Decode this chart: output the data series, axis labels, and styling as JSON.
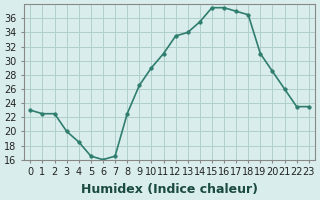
{
  "x": [
    0,
    1,
    2,
    3,
    4,
    5,
    6,
    7,
    8,
    9,
    10,
    11,
    12,
    13,
    14,
    15,
    16,
    17,
    18,
    19,
    20,
    21,
    22,
    23
  ],
  "y": [
    23,
    22.5,
    22.5,
    20,
    18.5,
    16.5,
    16,
    16.5,
    22.5,
    26.5,
    29,
    31,
    33.5,
    34,
    35.5,
    37.5,
    37.5,
    37,
    36.5,
    31,
    28.5,
    26,
    23.5,
    23.5
  ],
  "xlabel": "Humidex (Indice chaleur)",
  "ylim": [
    16,
    38
  ],
  "xlim": [
    -0.5,
    23.5
  ],
  "yticks": [
    16,
    18,
    20,
    22,
    24,
    26,
    28,
    30,
    32,
    34,
    36
  ],
  "xticks": [
    0,
    1,
    2,
    3,
    4,
    5,
    6,
    7,
    8,
    9,
    10,
    11,
    12,
    13,
    14,
    15,
    16,
    17,
    18,
    19,
    20,
    21,
    22,
    23
  ],
  "xtick_labels": [
    "0",
    "1",
    "2",
    "3",
    "4",
    "5",
    "6",
    "7",
    "8",
    "9",
    "10",
    "11",
    "12",
    "13",
    "14",
    "15",
    "16",
    "17",
    "18",
    "19",
    "20",
    "21",
    "22",
    "23"
  ],
  "line_color": "#2e7d6e",
  "marker_color": "#2e7d6e",
  "bg_color": "#d9eeec",
  "grid_color": "#b0d0cc",
  "tick_label_fontsize": 7.0,
  "xlabel_fontsize": 9
}
